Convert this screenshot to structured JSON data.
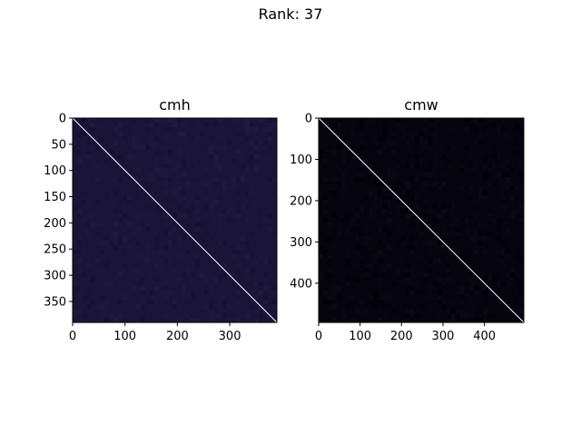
{
  "figure": {
    "title": "Rank: 37",
    "background": "#ffffff"
  },
  "chart_data": [
    {
      "type": "heatmap",
      "title": "cmh",
      "matrix_size": 390,
      "xlim": [
        0,
        390
      ],
      "ylim": [
        390,
        0
      ],
      "x_ticks": [
        0,
        100,
        200,
        300
      ],
      "y_ticks": [
        0,
        50,
        100,
        150,
        200,
        250,
        300,
        350
      ],
      "values": {
        "off_diagonal_background": "#1a1438",
        "diagonal": "#ffffff"
      },
      "colormap": "dark purple to white",
      "grid": false
    },
    {
      "type": "heatmap",
      "title": "cmw",
      "matrix_size": 495,
      "xlim": [
        0,
        495
      ],
      "ylim": [
        495,
        0
      ],
      "x_ticks": [
        0,
        100,
        200,
        300,
        400
      ],
      "y_ticks": [
        0,
        100,
        200,
        300,
        400
      ],
      "values": {
        "off_diagonal_background": "#05040f",
        "diagonal": "#ffffff"
      },
      "colormap": "dark purple to white",
      "grid": false
    }
  ]
}
